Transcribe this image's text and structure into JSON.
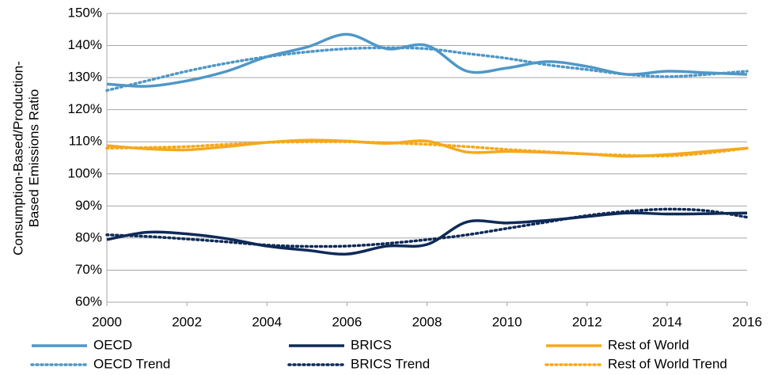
{
  "chart_data": {
    "type": "line",
    "y_label": [
      "Consumption-Based/Production-",
      "Based Emissions Ratio"
    ],
    "x": [
      2000,
      2001,
      2002,
      2003,
      2004,
      2005,
      2006,
      2007,
      2008,
      2009,
      2010,
      2011,
      2012,
      2013,
      2014,
      2015,
      2016
    ],
    "xlim": [
      2000,
      2016
    ],
    "xticks": [
      2000,
      2002,
      2004,
      2006,
      2008,
      2010,
      2012,
      2014,
      2016
    ],
    "ylim": [
      60,
      150
    ],
    "yticks": [
      {
        "value": 60,
        "label": "60%"
      },
      {
        "value": 70,
        "label": "70%"
      },
      {
        "value": 80,
        "label": "80%"
      },
      {
        "value": 90,
        "label": "90%"
      },
      {
        "value": 100,
        "label": "100%"
      },
      {
        "value": 110,
        "label": "110%"
      },
      {
        "value": 120,
        "label": "120%"
      },
      {
        "value": 130,
        "label": "130%"
      },
      {
        "value": 140,
        "label": "140%"
      },
      {
        "value": 150,
        "label": "150%"
      }
    ],
    "grid": true,
    "legend": "bottom",
    "series": [
      {
        "name": "OECD",
        "color": "#4f97c7",
        "style": "solid",
        "values": [
          128,
          127.3,
          129,
          132,
          136.5,
          139.5,
          143.5,
          139,
          140,
          132,
          133,
          135,
          133.5,
          131,
          132,
          131.5,
          131
        ]
      },
      {
        "name": "BRICS",
        "color": "#0e2a57",
        "style": "solid",
        "values": [
          79.5,
          81.8,
          81.3,
          79.8,
          77.5,
          76.2,
          75,
          77.5,
          78,
          85,
          84.7,
          85.5,
          86.7,
          87.8,
          87.5,
          87.6,
          87.8
        ]
      },
      {
        "name": "Rest of World",
        "color": "#f5a81c",
        "style": "solid",
        "values": [
          108.8,
          107.8,
          107.5,
          108.5,
          109.8,
          110.5,
          110.2,
          109.5,
          110.2,
          106.8,
          107,
          106.7,
          106.2,
          105.5,
          106,
          107,
          108
        ]
      },
      {
        "name": "OECD Trend",
        "color": "#4f97c7",
        "style": "dotted",
        "values": [
          126,
          129,
          132,
          134.5,
          136.5,
          138,
          139,
          139.3,
          139,
          137.5,
          136,
          134,
          132.5,
          131,
          130.3,
          131,
          132
        ]
      },
      {
        "name": "BRICS Trend",
        "color": "#0e2a57",
        "style": "dotted",
        "values": [
          81,
          80.5,
          79.7,
          78.8,
          77.8,
          77.4,
          77.5,
          78.3,
          79.5,
          81,
          83,
          85,
          87,
          88.3,
          89,
          88.5,
          86.5
        ]
      },
      {
        "name": "Rest of World Trend",
        "color": "#f5a81c",
        "style": "dotted",
        "values": [
          108,
          108.2,
          108.5,
          109.2,
          109.8,
          110,
          110,
          109.7,
          109.2,
          108.5,
          107.6,
          106.9,
          106.2,
          105.8,
          105.6,
          106.5,
          108
        ]
      }
    ]
  }
}
